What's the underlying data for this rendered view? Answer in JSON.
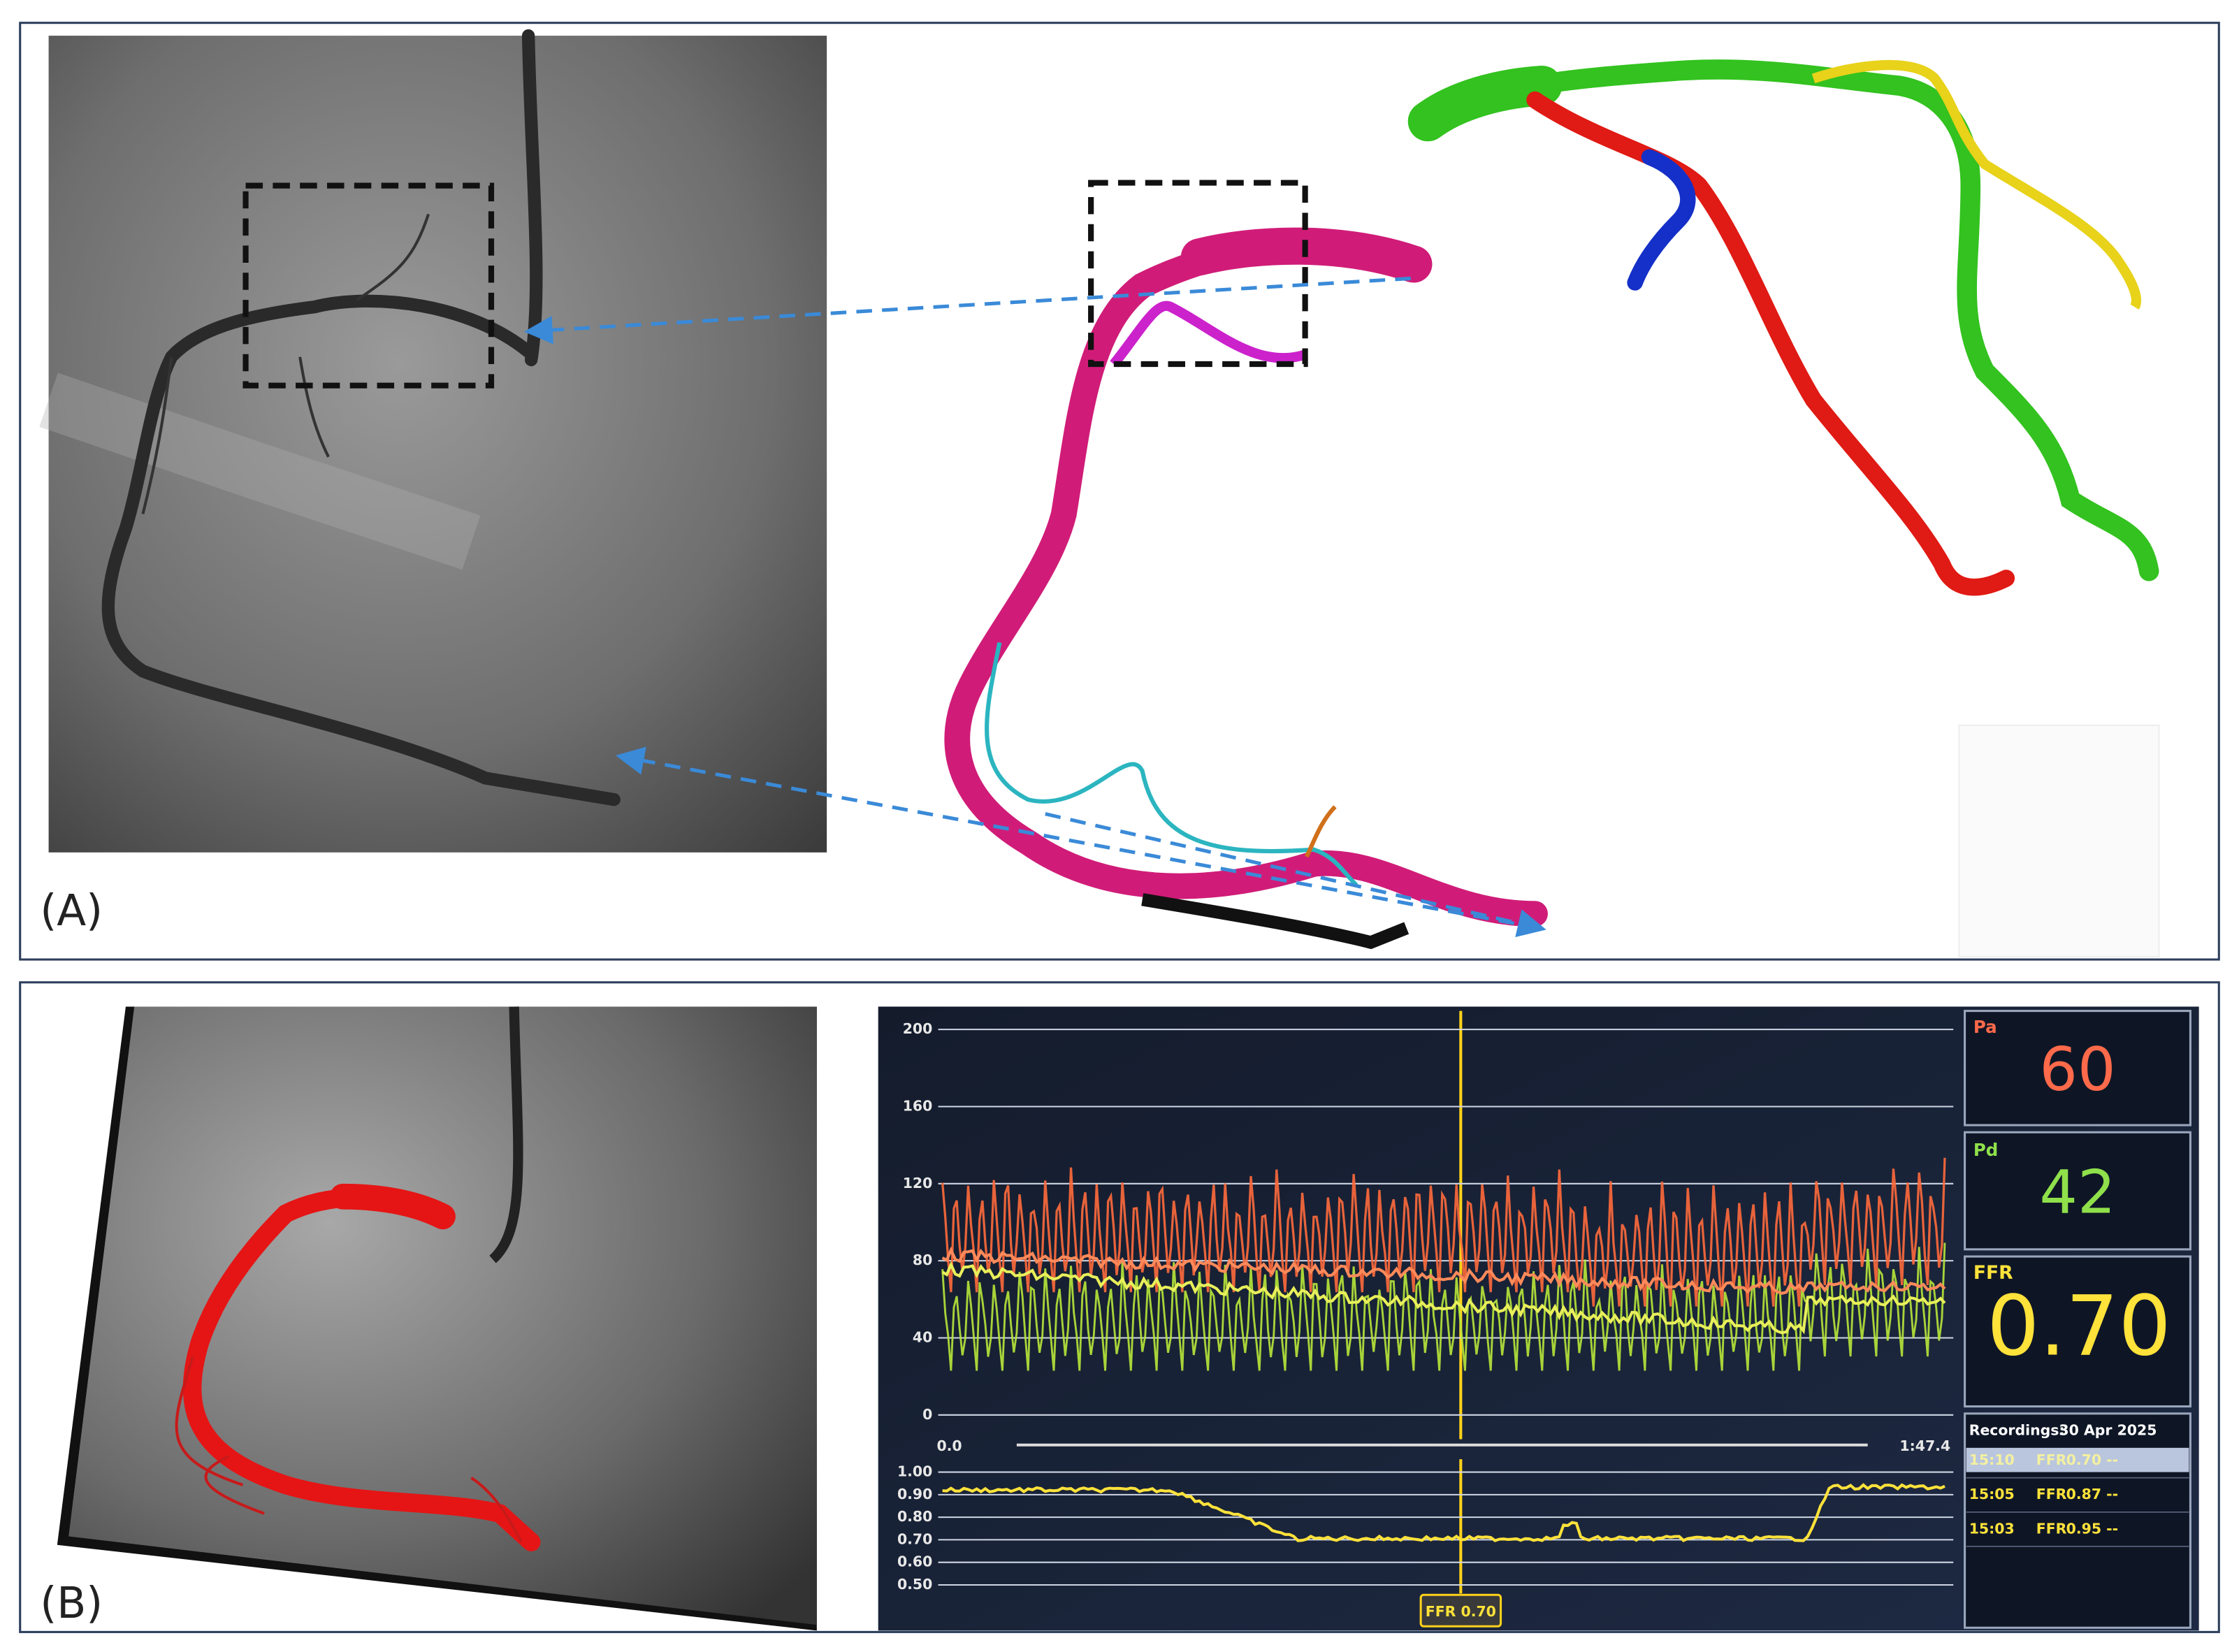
{
  "panel_a": {
    "label": "(A)"
  },
  "panel_b": {
    "label": "(B)",
    "monitor": {
      "pressure_ticks": [
        "200",
        "160",
        "120",
        "80",
        "40",
        "0"
      ],
      "time_start": "0.0",
      "time_end": "1:47.4",
      "ffr_ticks": [
        "1.00",
        "0.90",
        "0.80",
        "0.70",
        "0.60",
        "0.50"
      ],
      "pa": {
        "label": "Pa",
        "value": "60"
      },
      "pd": {
        "label": "Pd",
        "value": "42"
      },
      "ffr": {
        "label": "FFR",
        "value": "0.70"
      },
      "recordings": {
        "title": "Recordings:",
        "date": "30 Apr 2025",
        "rows": [
          [
            "15:10",
            "FFR",
            "0.70 --"
          ],
          [
            "15:05",
            "FFR",
            "0.87 --"
          ],
          [
            "15:03",
            "FFR",
            "0.95 --"
          ]
        ]
      },
      "cursor_label": "FFR 0.70"
    }
  }
}
